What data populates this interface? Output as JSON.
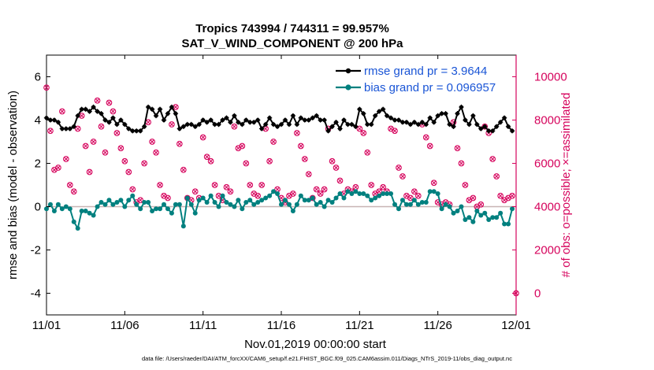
{
  "chart_data": {
    "type": "line",
    "title_line1": "Tropics 743994 / 744311 = 99.957%",
    "title_line2": "SAT_V_WIND_COMPONENT @ 200 hPa",
    "xlabel": "Nov.01,2019 00:00:00 start",
    "ylabel_left": "rmse and bias (model - observation)",
    "ylabel_right": "# of obs: o=possible; ×=assimilated",
    "x_tick_labels": [
      "11/01",
      "11/06",
      "11/11",
      "11/16",
      "11/21",
      "11/26",
      "12/01"
    ],
    "x_ticks": [
      0,
      5,
      10,
      15,
      20,
      25,
      30
    ],
    "xlim": [
      0,
      30
    ],
    "y_left_ticks": [
      -4,
      -2,
      0,
      2,
      4,
      6
    ],
    "ylim_left": [
      -5,
      7
    ],
    "y_right_ticks": [
      0,
      2000,
      4000,
      6000,
      8000,
      10000
    ],
    "ylim_right": [
      -1000,
      11000
    ],
    "legend": [
      "rmse grand pr = 3.9644",
      "bias grand pr = 0.096957"
    ],
    "colors": {
      "rmse": "#000000",
      "bias": "#00807f",
      "obs": "#d6045d",
      "legend_text": "#1a55d6",
      "zero_line": "#c8b3b3"
    },
    "series": [
      {
        "name": "rmse",
        "x": [
          0.0,
          0.25,
          0.5,
          0.75,
          1.0,
          1.25,
          1.5,
          1.75,
          2.0,
          2.25,
          2.5,
          2.75,
          3.0,
          3.25,
          3.5,
          3.75,
          4.0,
          4.25,
          4.5,
          4.75,
          5.0,
          5.25,
          5.5,
          5.75,
          6.0,
          6.25,
          6.5,
          6.75,
          7.0,
          7.25,
          7.5,
          7.75,
          8.0,
          8.25,
          8.5,
          8.75,
          9.0,
          9.25,
          9.5,
          9.75,
          10.0,
          10.25,
          10.5,
          10.75,
          11.0,
          11.25,
          11.5,
          11.75,
          12.0,
          12.25,
          12.5,
          12.75,
          13.0,
          13.25,
          13.5,
          13.75,
          14.0,
          14.25,
          14.5,
          14.75,
          15.0,
          15.25,
          15.5,
          15.75,
          16.0,
          16.25,
          16.5,
          16.75,
          17.0,
          17.25,
          17.5,
          17.75,
          18.0,
          18.25,
          18.5,
          18.75,
          19.0,
          19.25,
          19.5,
          19.75,
          20.0,
          20.25,
          20.5,
          20.75,
          21.0,
          21.25,
          21.5,
          21.75,
          22.0,
          22.25,
          22.5,
          22.75,
          23.0,
          23.25,
          23.5,
          23.75,
          24.0,
          24.25,
          24.5,
          24.75,
          25.0,
          25.25,
          25.5,
          25.75,
          26.0,
          26.25,
          26.5,
          26.75,
          27.0,
          27.25,
          27.5,
          27.75,
          28.0,
          28.25,
          28.5,
          28.75,
          29.0,
          29.25,
          29.5,
          29.75
        ],
        "values": [
          4.1,
          4.0,
          4.0,
          3.9,
          3.6,
          3.6,
          3.6,
          3.7,
          4.2,
          4.5,
          4.5,
          4.4,
          4.6,
          4.4,
          4.3,
          4.0,
          3.9,
          4.1,
          3.8,
          4.0,
          3.8,
          3.6,
          3.5,
          3.5,
          3.5,
          3.7,
          4.6,
          4.5,
          4.2,
          4.5,
          4.0,
          4.3,
          4.6,
          4.3,
          3.6,
          3.7,
          3.8,
          3.8,
          3.7,
          3.8,
          4.0,
          3.9,
          4.0,
          3.8,
          3.8,
          4.0,
          4.1,
          3.9,
          4.2,
          3.9,
          3.8,
          4.0,
          3.9,
          3.9,
          4.0,
          3.6,
          3.8,
          4.1,
          3.8,
          3.7,
          3.8,
          4.0,
          3.8,
          4.2,
          3.8,
          4.1,
          4.0,
          4.0,
          4.1,
          4.2,
          4.0,
          4.0,
          3.5,
          3.7,
          3.9,
          3.6,
          4.0,
          3.8,
          3.8,
          3.7,
          4.5,
          4.3,
          3.8,
          3.8,
          4.2,
          4.4,
          4.5,
          4.2,
          4.1,
          4.0,
          4.0,
          3.9,
          3.9,
          3.8,
          3.9,
          3.8,
          3.9,
          3.8,
          4.1,
          3.9,
          4.2,
          4.3,
          4.3,
          3.8,
          3.7,
          4.3,
          4.6,
          4.0,
          3.8,
          4.2,
          3.8,
          3.6,
          3.7,
          3.5,
          3.5,
          3.7,
          3.9,
          4.1,
          3.7,
          3.5
        ],
        "color": "#000000"
      },
      {
        "name": "bias",
        "x": [
          0.0,
          0.25,
          0.5,
          0.75,
          1.0,
          1.25,
          1.5,
          1.75,
          2.0,
          2.25,
          2.5,
          2.75,
          3.0,
          3.25,
          3.5,
          3.75,
          4.0,
          4.25,
          4.5,
          4.75,
          5.0,
          5.25,
          5.5,
          5.75,
          6.0,
          6.25,
          6.5,
          6.75,
          7.0,
          7.25,
          7.5,
          7.75,
          8.0,
          8.25,
          8.5,
          8.75,
          9.0,
          9.25,
          9.5,
          9.75,
          10.0,
          10.25,
          10.5,
          10.75,
          11.0,
          11.25,
          11.5,
          11.75,
          12.0,
          12.25,
          12.5,
          12.75,
          13.0,
          13.25,
          13.5,
          13.75,
          14.0,
          14.25,
          14.5,
          14.75,
          15.0,
          15.25,
          15.5,
          15.75,
          16.0,
          16.25,
          16.5,
          16.75,
          17.0,
          17.25,
          17.5,
          17.75,
          18.0,
          18.25,
          18.5,
          18.75,
          19.0,
          19.25,
          19.5,
          19.75,
          20.0,
          20.25,
          20.5,
          20.75,
          21.0,
          21.25,
          21.5,
          21.75,
          22.0,
          22.25,
          22.5,
          22.75,
          23.0,
          23.25,
          23.5,
          23.75,
          24.0,
          24.25,
          24.5,
          24.75,
          25.0,
          25.25,
          25.5,
          25.75,
          26.0,
          26.25,
          26.5,
          26.75,
          27.0,
          27.25,
          27.5,
          27.75,
          28.0,
          28.25,
          28.5,
          28.75,
          29.0,
          29.25,
          29.5,
          29.75
        ],
        "values": [
          -0.1,
          0.1,
          -0.2,
          0.1,
          -0.1,
          0.0,
          -0.1,
          -0.7,
          -1.0,
          -0.2,
          -0.2,
          -0.3,
          -0.4,
          0.0,
          0.2,
          0.1,
          0.3,
          0.1,
          0.2,
          0.3,
          0.0,
          0.3,
          0.5,
          0.1,
          -0.1,
          0.2,
          0.2,
          -0.2,
          -0.1,
          -0.1,
          0.1,
          -0.1,
          -0.3,
          0.1,
          0.1,
          -0.9,
          0.4,
          0.1,
          -0.3,
          0.3,
          0.4,
          0.2,
          0.5,
          0.2,
          0.0,
          0.5,
          0.2,
          0.1,
          0.0,
          0.3,
          -0.1,
          0.2,
          0.3,
          0.1,
          0.2,
          0.3,
          0.4,
          0.5,
          0.7,
          0.6,
          0.1,
          0.3,
          0.1,
          -0.2,
          0.1,
          0.5,
          0.3,
          0.3,
          0.4,
          0.1,
          0.2,
          0.0,
          0.3,
          0.2,
          0.4,
          0.6,
          0.4,
          0.7,
          0.6,
          0.7,
          0.6,
          0.6,
          0.5,
          0.3,
          0.4,
          0.5,
          0.6,
          0.6,
          0.6,
          0.1,
          -0.1,
          0.3,
          0.1,
          0.1,
          0.3,
          0.1,
          0.2,
          0.2,
          0.7,
          0.7,
          0.6,
          -0.1,
          0.1,
          0.0,
          -0.3,
          -0.2,
          0.0,
          -0.6,
          -0.5,
          -0.7,
          -0.2,
          -0.4,
          -0.3,
          -0.6,
          -0.5,
          -0.5,
          -0.3,
          -0.8,
          -0.8,
          -0.1
        ],
        "color": "#00807f"
      },
      {
        "name": "obs_possible",
        "x": [
          0.0,
          0.25,
          0.5,
          0.75,
          1.0,
          1.25,
          1.5,
          1.75,
          2.0,
          2.25,
          2.5,
          2.75,
          3.0,
          3.25,
          3.5,
          3.75,
          4.0,
          4.25,
          4.5,
          4.75,
          5.0,
          5.25,
          5.5,
          5.75,
          6.0,
          6.25,
          6.5,
          6.75,
          7.0,
          7.25,
          7.5,
          7.75,
          8.0,
          8.25,
          8.5,
          8.75,
          9.0,
          9.25,
          9.5,
          9.75,
          10.0,
          10.25,
          10.5,
          10.75,
          11.0,
          11.25,
          11.5,
          11.75,
          12.0,
          12.25,
          12.5,
          12.75,
          13.0,
          13.25,
          13.5,
          13.75,
          14.0,
          14.25,
          14.5,
          14.75,
          15.0,
          15.25,
          15.5,
          15.75,
          16.0,
          16.25,
          16.5,
          16.75,
          17.0,
          17.25,
          17.5,
          17.75,
          18.0,
          18.25,
          18.5,
          18.75,
          19.0,
          19.25,
          19.5,
          19.75,
          20.0,
          20.25,
          20.5,
          20.75,
          21.0,
          21.25,
          21.5,
          21.75,
          22.0,
          22.25,
          22.5,
          22.75,
          23.0,
          23.25,
          23.5,
          23.75,
          24.0,
          24.25,
          24.5,
          24.75,
          25.0,
          25.25,
          25.5,
          25.75,
          26.0,
          26.25,
          26.5,
          26.75,
          27.0,
          27.25,
          27.5,
          27.75,
          28.0,
          28.25,
          28.5,
          28.75,
          29.0,
          29.25,
          29.5,
          29.75
        ],
        "values": [
          9500,
          7500,
          5700,
          5800,
          8400,
          6200,
          5000,
          4700,
          7600,
          8200,
          6800,
          5600,
          7000,
          8900,
          7700,
          6500,
          8800,
          8400,
          7400,
          6700,
          6100,
          5600,
          4800,
          4200,
          4300,
          6000,
          7900,
          7000,
          6500,
          5000,
          4500,
          4400,
          7800,
          8600,
          6900,
          5700,
          4400,
          4300,
          4700,
          4400,
          7200,
          6300,
          6100,
          5000,
          4500,
          4300,
          4900,
          4700,
          7700,
          6700,
          6800,
          6000,
          5000,
          4600,
          4500,
          5000,
          7600,
          6100,
          7000,
          4800,
          4400,
          4200,
          4500,
          4600,
          7400,
          6800,
          6200,
          5500,
          4400,
          4800,
          4600,
          4800,
          7600,
          6100,
          5800,
          5200,
          4600,
          4800,
          4700,
          4900,
          7600,
          7400,
          6500,
          5000,
          4600,
          4700,
          4900,
          4700,
          7600,
          7500,
          5800,
          5400,
          4500,
          4400,
          4700,
          4500,
          7800,
          7200,
          6800,
          5100,
          4200,
          4100,
          4200,
          4100,
          7900,
          6700,
          6000,
          5000,
          4300,
          4400,
          4000,
          4100,
          7700,
          7400,
          6200,
          5400,
          4500,
          4300,
          4400,
          4500
        ]
      }
    ]
  },
  "footer_text": "data file: /Users/raeder/DAI/ATM_forcXX/CAM6_setup/f.e21.FHIST_BGC.f09_025.CAM6assim.011/Diags_NTrS_2019-11/obs_diag_output.nc"
}
